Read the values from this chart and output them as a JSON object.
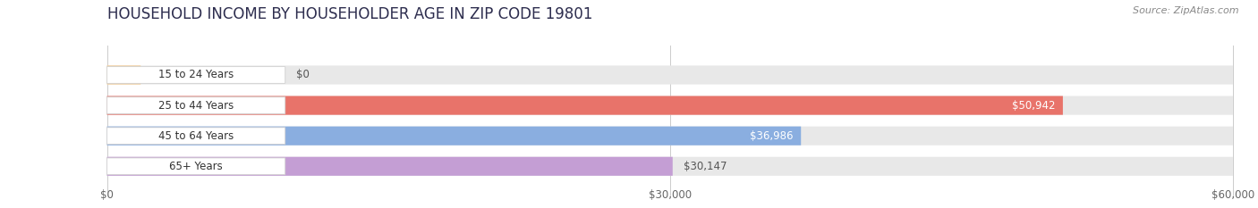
{
  "title": "HOUSEHOLD INCOME BY HOUSEHOLDER AGE IN ZIP CODE 19801",
  "source": "Source: ZipAtlas.com",
  "categories": [
    "15 to 24 Years",
    "25 to 44 Years",
    "45 to 64 Years",
    "65+ Years"
  ],
  "values": [
    0,
    50942,
    36986,
    30147
  ],
  "bar_colors": [
    "#f5c98a",
    "#e8736a",
    "#8aaee0",
    "#c49ed4"
  ],
  "track_color": "#e8e8e8",
  "xlim": [
    0,
    60000
  ],
  "xticks": [
    0,
    30000,
    60000
  ],
  "xtick_labels": [
    "$0",
    "$30,000",
    "$60,000"
  ],
  "value_labels": [
    "$0",
    "$50,942",
    "$36,986",
    "$30,147"
  ],
  "value_label_inside": [
    false,
    true,
    true,
    false
  ],
  "background_color": "#ffffff",
  "title_fontsize": 12,
  "bar_height": 0.62,
  "bar_gap": 0.38,
  "figsize": [
    14.06,
    2.33
  ]
}
